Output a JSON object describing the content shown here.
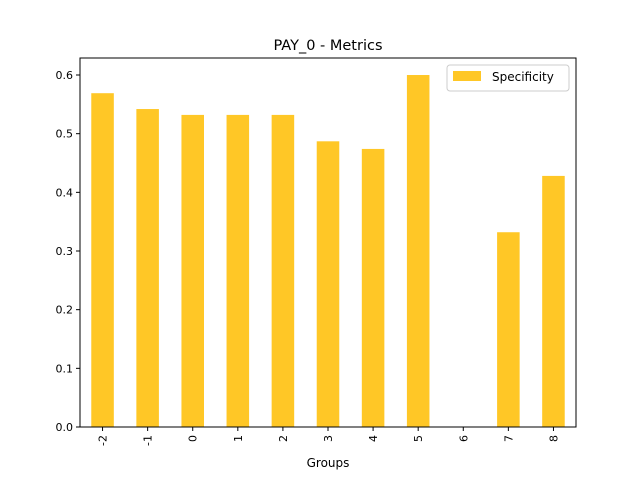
{
  "chart_data": {
    "type": "bar",
    "title": "PAY_0 - Metrics",
    "xlabel": "Groups",
    "ylabel": "",
    "categories": [
      "-2",
      "-1",
      "0",
      "1",
      "2",
      "3",
      "4",
      "5",
      "6",
      "7",
      "8"
    ],
    "series": [
      {
        "name": "Specificity",
        "values": [
          0.569,
          0.542,
          0.532,
          0.532,
          0.532,
          0.487,
          0.474,
          0.6,
          0.0,
          0.332,
          0.428
        ],
        "color": "#ffc726"
      }
    ],
    "ylim": [
      0,
      0.629
    ],
    "yticks": [
      "0.0",
      "0.1",
      "0.2",
      "0.3",
      "0.4",
      "0.5",
      "0.6"
    ],
    "grid": false,
    "legend": "top-right"
  }
}
